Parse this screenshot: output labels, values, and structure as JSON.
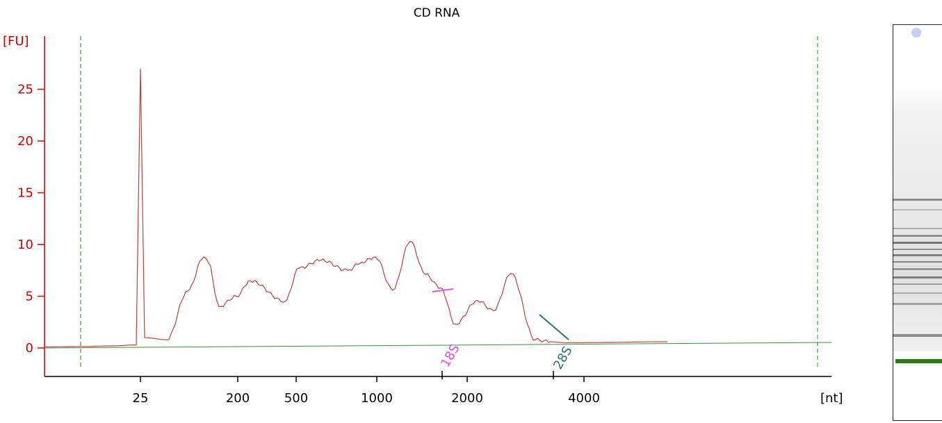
{
  "chart_data": {
    "type": "line",
    "title": "CD RNA",
    "ylabel": "[FU]",
    "xlabel": "[nt]",
    "ylim": [
      -2.7,
      30
    ],
    "y_ticks": [
      0,
      5,
      10,
      15,
      20,
      25
    ],
    "x_ticks": [
      "25",
      "200",
      "500",
      "1000",
      "2000",
      "4000"
    ],
    "x_scale": "electrophoresis time (nonlinear size scale)",
    "grid": false,
    "colors": {
      "trace": "#b5443c",
      "baseline": "#3f8a3f",
      "axis_y": "#cc0000",
      "axis_x": "#000000",
      "boundary": "#2e7d2e",
      "peak_18S": "#e84fe0",
      "peak_28S": "#2f6f6f"
    },
    "peak_labels": [
      {
        "name": "18S",
        "x": "1700"
      },
      {
        "name": "28S",
        "x": "3600"
      }
    ],
    "series": [
      {
        "values": [
          [
            "<25",
            0.1
          ],
          [
            "<25",
            0.15
          ],
          [
            "<25",
            0.2
          ],
          [
            "~25",
            0.3
          ],
          [
            "25",
            27.0
          ],
          [
            "~25",
            1.0
          ],
          [
            "~25",
            0.8
          ],
          [
            "~100",
            5.5
          ],
          [
            "~150",
            8.8
          ],
          [
            "~170",
            8.2
          ],
          [
            "~200",
            4.0
          ],
          [
            "~280",
            5.0
          ],
          [
            "~400",
            6.5
          ],
          [
            "~500",
            4.5
          ],
          [
            "~600",
            7.7
          ],
          [
            "~750",
            8.5
          ],
          [
            "~1000",
            7.5
          ],
          [
            "~1100",
            8.3
          ],
          [
            "~1300",
            8.8
          ],
          [
            "~1500",
            5.6
          ],
          [
            "1700",
            10.3
          ],
          [
            "~1800",
            7.1
          ],
          [
            "~2200",
            5.8
          ],
          [
            "~2600",
            2.3
          ],
          [
            "~2900",
            4.6
          ],
          [
            "~3400",
            3.6
          ],
          [
            "3600",
            7.2
          ],
          [
            "~3700",
            0.8
          ],
          [
            "~5000",
            0.6
          ],
          [
            ">5000",
            0.5
          ],
          [
            ">5000",
            0.6
          ]
        ]
      }
    ]
  },
  "gel": {
    "ladder_marker_color": "#2a7a1a",
    "band_intensity_note": ""
  }
}
